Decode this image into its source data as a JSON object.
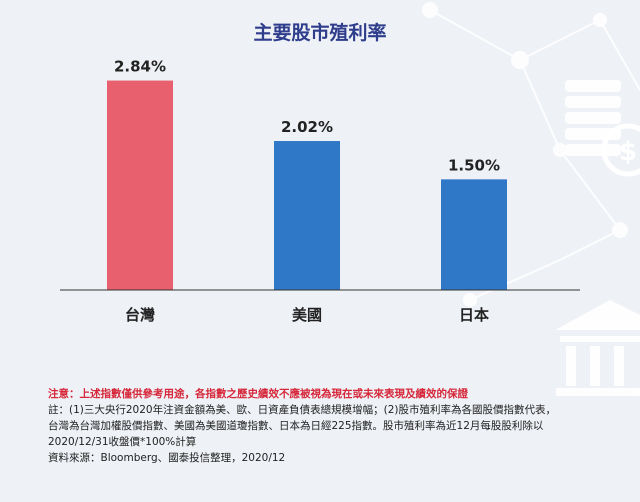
{
  "chart_data": {
    "type": "bar",
    "title": "主要股市殖利率",
    "categories": [
      "台灣",
      "美國",
      "日本"
    ],
    "values": [
      2.84,
      2.02,
      1.5
    ],
    "value_labels": [
      "2.84%",
      "2.02%",
      "1.50%"
    ],
    "ylim": [
      0,
      3.2
    ],
    "grid": false,
    "legend": "none",
    "colors": [
      "#e8606e",
      "#2f77c7",
      "#2f77c7"
    ]
  },
  "notes": {
    "warning": "注意：上述指數僅供參考用途，各指數之歷史績效不應被視為現在或未來表現及績效的保證",
    "line1": "註：(1)三大央行2020年注資金額為美、歐、日資產負債表總規模增幅；(2)股市殖利率為各國股價指數代表，",
    "line2": "台灣為台灣加權股價指數、美國為美國道瓊指數、日本為日經225指數。股市殖利率為近12月每股股利除以",
    "line3": "2020/12/31收盤價*100%計算",
    "source": "資料來源：Bloomberg、國泰投信整理，2020/12"
  },
  "decor": {
    "coin_symbol": "$",
    "icons": [
      "coin-stack-icon",
      "dollar-coin-icon",
      "bank-icon",
      "network-icon"
    ],
    "deco_color": "#ffffff"
  }
}
